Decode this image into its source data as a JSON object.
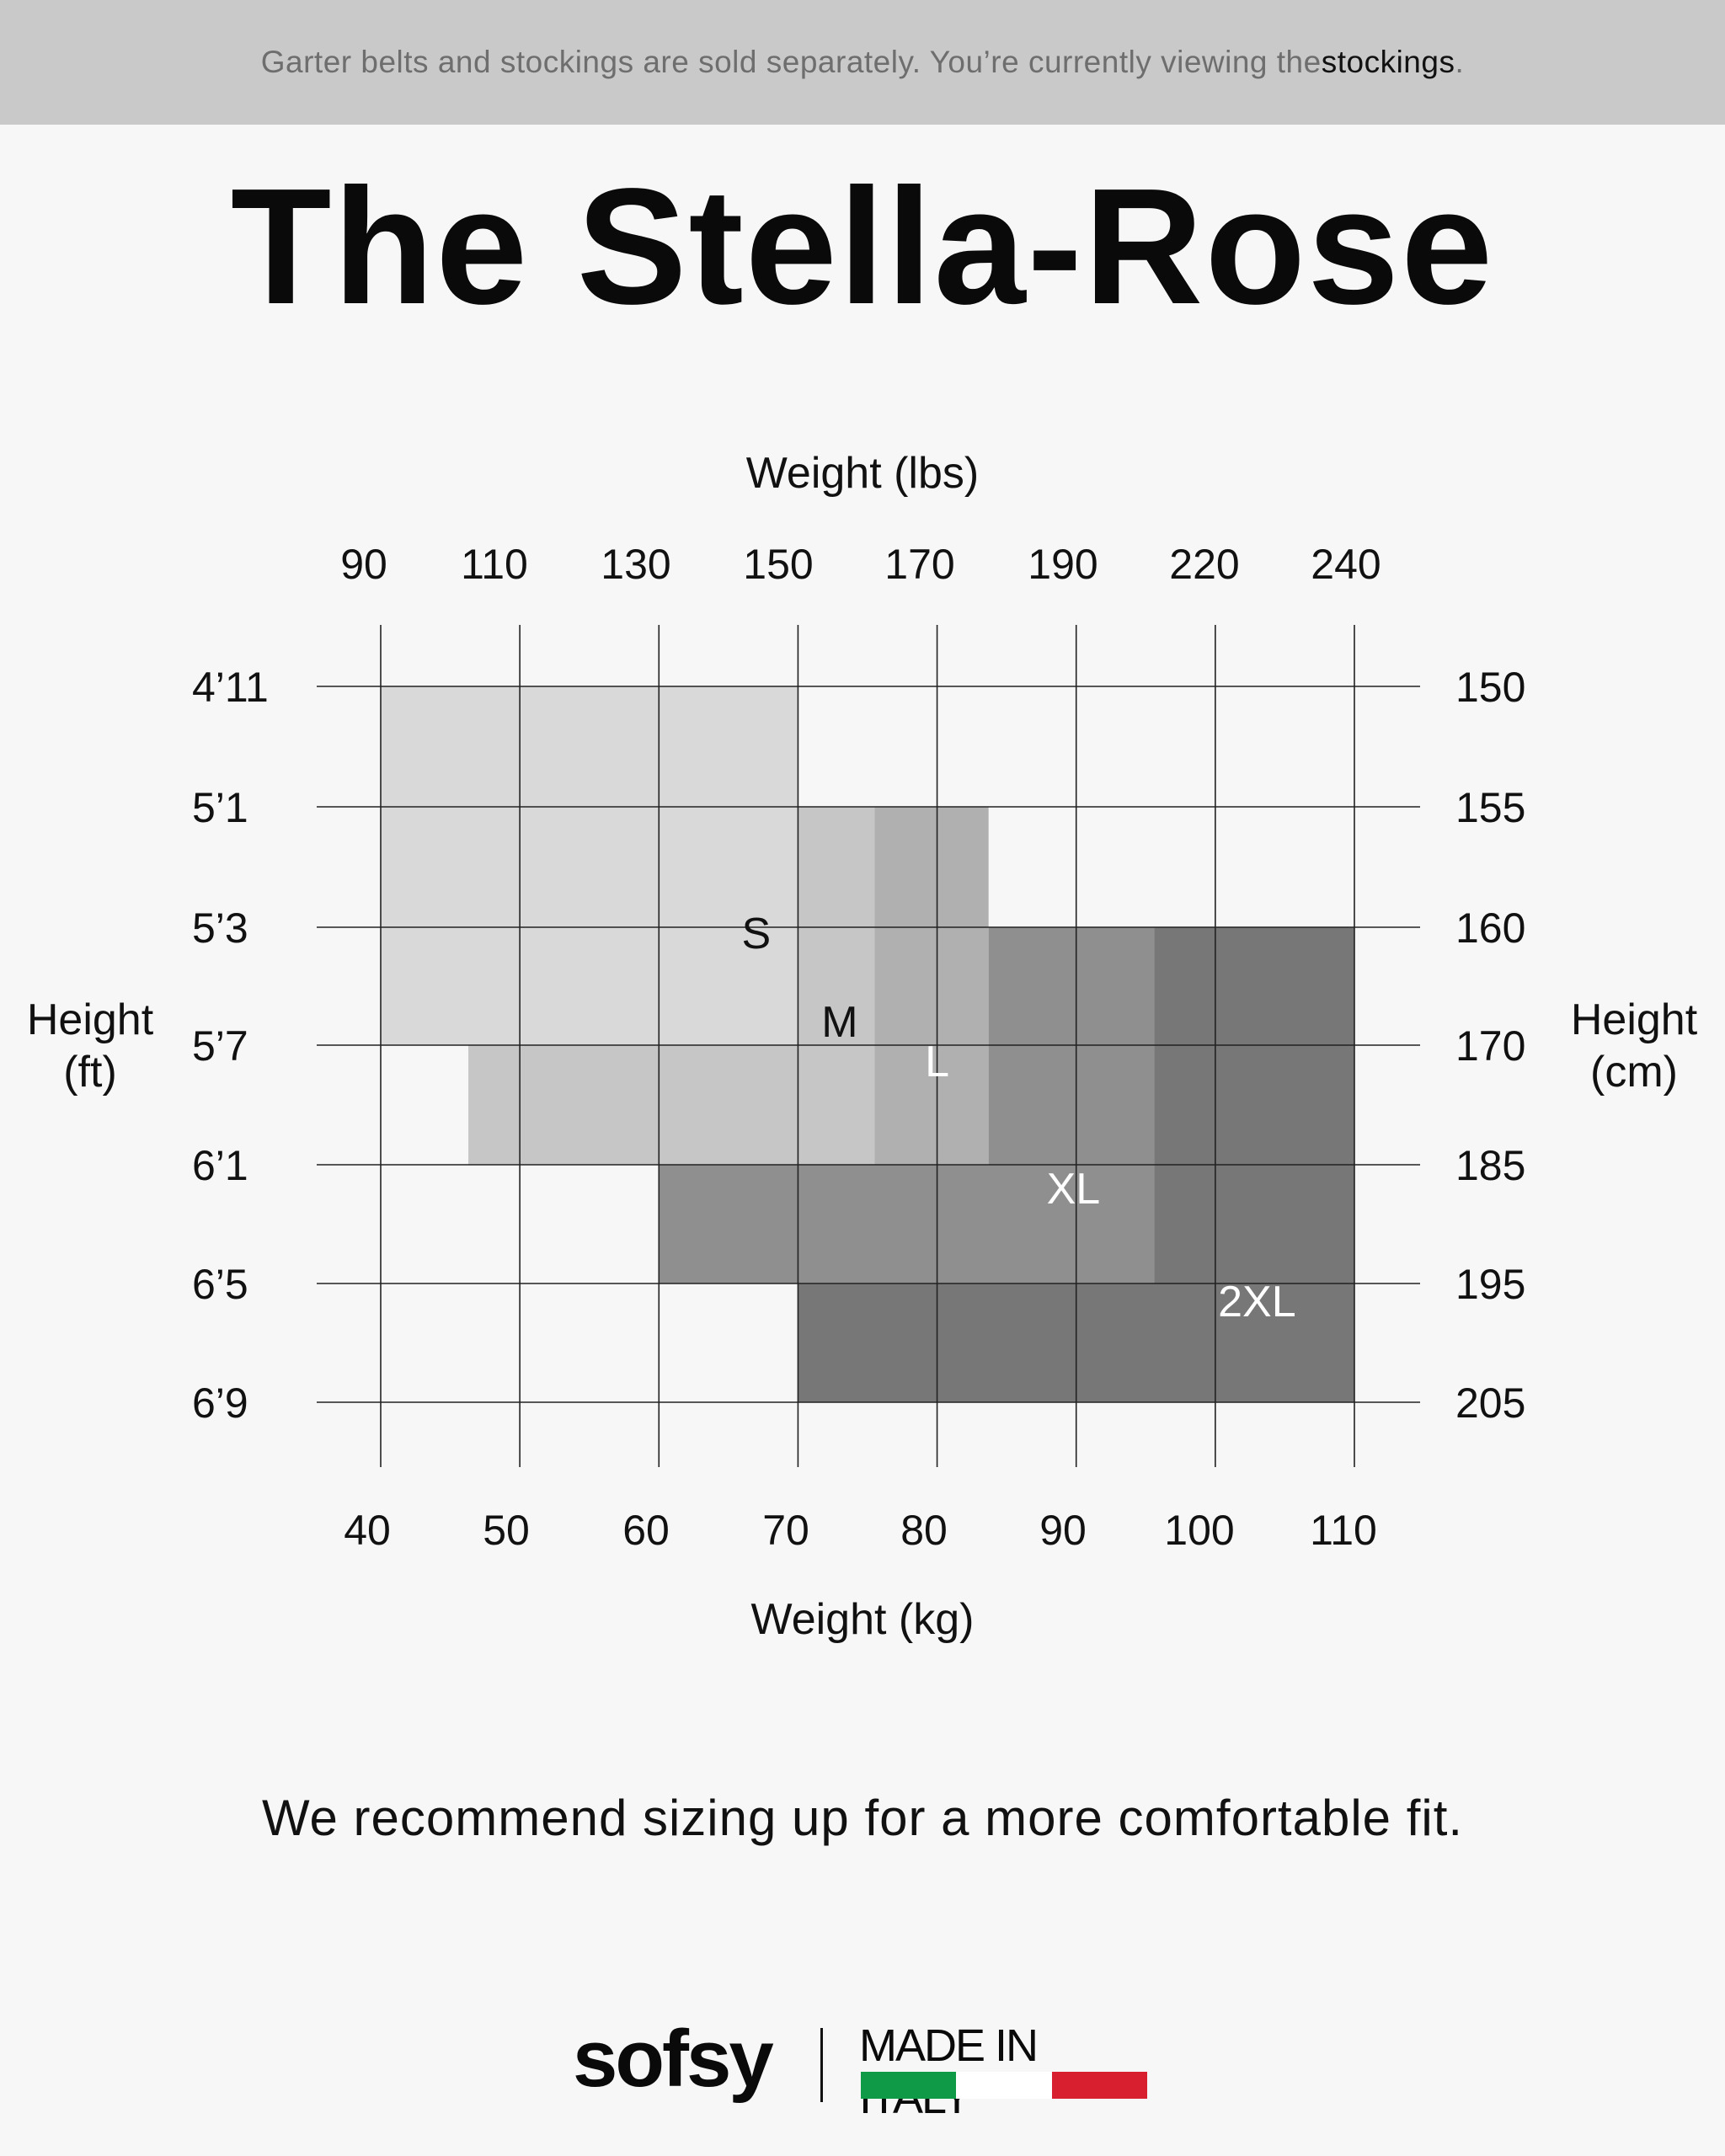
{
  "banner": {
    "text_before": "Garter belts and stockings are sold separately. You’re currently viewing the ",
    "highlight": "stockings",
    "text_after": "."
  },
  "title": "The Stella-Rose",
  "chart_data": {
    "type": "heatmap",
    "description_kind": "size chart regions",
    "x_top_title": "Weight (lbs)",
    "x_top_ticks": [
      "90",
      "110",
      "130",
      "150",
      "170",
      "190",
      "220",
      "240"
    ],
    "x_bottom_title": "Weight (kg)",
    "x_bottom_ticks": [
      40,
      50,
      60,
      70,
      80,
      90,
      100,
      110
    ],
    "xlim": [
      40,
      110
    ],
    "y_left_title": [
      "Height",
      "(ft)"
    ],
    "y_left_ticks": [
      "4’11",
      "5’1",
      "5’3",
      "5’7",
      "6’1",
      "6’5",
      "6’9"
    ],
    "y_right_title": [
      "Height",
      "(cm)"
    ],
    "y_right_ticks": [
      150,
      155,
      160,
      170,
      185,
      195,
      205
    ],
    "ylim": [
      150,
      205
    ],
    "grid": true,
    "sizes": [
      {
        "name": "S",
        "color": "#d9d9d9",
        "label_color": "#111111",
        "rects": [
          {
            "kg": [
              40,
              70
            ],
            "cm": [
              150,
              170
            ]
          }
        ]
      },
      {
        "name": "M",
        "color": "#c6c6c6",
        "label_color": "#111111",
        "rects": [
          {
            "kg": [
              70,
              75.5
            ],
            "cm": [
              155,
              170
            ]
          },
          {
            "kg": [
              46.3,
              75.5
            ],
            "cm": [
              170,
              185
            ]
          }
        ]
      },
      {
        "name": "L",
        "color": "#b0b0b0",
        "label_color": "#ffffff",
        "rects": [
          {
            "kg": [
              75.5,
              83.7
            ],
            "cm": [
              155,
              185
            ]
          }
        ]
      },
      {
        "name": "XL",
        "color": "#8f8f8f",
        "label_color": "#ffffff",
        "rects": [
          {
            "kg": [
              83.7,
              95.6
            ],
            "cm": [
              160,
              185
            ]
          },
          {
            "kg": [
              60,
              95.6
            ],
            "cm": [
              185,
              195
            ]
          }
        ]
      },
      {
        "name": "2XL",
        "color": "#777777",
        "label_color": "#ffffff",
        "rects": [
          {
            "kg": [
              95.6,
              110
            ],
            "cm": [
              160,
              195
            ]
          },
          {
            "kg": [
              70,
              110
            ],
            "cm": [
              195,
              205
            ]
          }
        ]
      }
    ],
    "size_label_positions": {
      "S": {
        "kg": 67,
        "cm": 160.5
      },
      "M": {
        "kg": 73,
        "cm": 168
      },
      "L": {
        "kg": 80,
        "cm": 172
      },
      "XL": {
        "kg": 89.8,
        "cm": 187
      },
      "2XL": {
        "kg": 103,
        "cm": 196.5
      }
    }
  },
  "note": "We recommend sizing up for a more comfortable fit.",
  "footer": {
    "brand": "sofsy",
    "made_in": "MADE IN ITALY",
    "flag_colors": [
      "#0f9a48",
      "#ffffff",
      "#d71f2f"
    ]
  }
}
